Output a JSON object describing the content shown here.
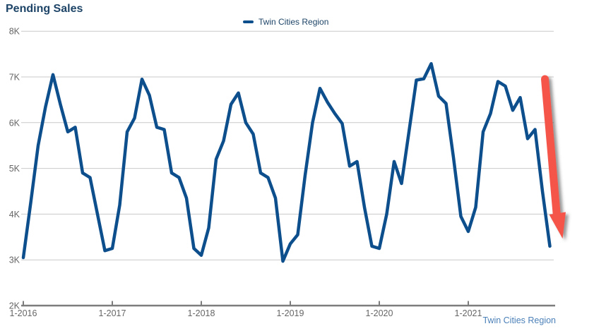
{
  "header": {
    "title": "Pending Sales"
  },
  "legend": {
    "label": "Twin Cities Region"
  },
  "footer": {
    "series_label": "Twin Cities Region"
  },
  "colors": {
    "line": "#0d4e8c",
    "title_text": "#1d4467",
    "legend_text": "#1d4467",
    "axis_text": "#666666",
    "grid_line": "#c9c9c9",
    "axis_line": "#7d7d7d",
    "footer_text": "#4b80b8",
    "arrow": "#f5544a",
    "arrow_shadow": "#444444"
  },
  "chart_data": {
    "type": "line",
    "title": "Pending Sales",
    "series_name": "Twin Cities Region",
    "x": [
      "2016-01",
      "2016-02",
      "2016-03",
      "2016-04",
      "2016-05",
      "2016-06",
      "2016-07",
      "2016-08",
      "2016-09",
      "2016-10",
      "2016-11",
      "2016-12",
      "2017-01",
      "2017-02",
      "2017-03",
      "2017-04",
      "2017-05",
      "2017-06",
      "2017-07",
      "2017-08",
      "2017-09",
      "2017-10",
      "2017-11",
      "2017-12",
      "2018-01",
      "2018-02",
      "2018-03",
      "2018-04",
      "2018-05",
      "2018-06",
      "2018-07",
      "2018-08",
      "2018-09",
      "2018-10",
      "2018-11",
      "2018-12",
      "2019-01",
      "2019-02",
      "2019-03",
      "2019-04",
      "2019-05",
      "2019-06",
      "2019-07",
      "2019-08",
      "2019-09",
      "2019-10",
      "2019-11",
      "2019-12",
      "2020-01",
      "2020-02",
      "2020-03",
      "2020-04",
      "2020-05",
      "2020-06",
      "2020-07",
      "2020-08",
      "2020-09",
      "2020-10",
      "2020-11",
      "2020-12",
      "2021-01",
      "2021-02",
      "2021-03",
      "2021-04",
      "2021-05",
      "2021-06",
      "2021-07",
      "2021-08",
      "2021-09",
      "2021-10",
      "2021-11",
      "2021-12"
    ],
    "values": [
      3050,
      4250,
      5500,
      6350,
      7050,
      6400,
      5800,
      5900,
      4900,
      4800,
      4000,
      3200,
      3250,
      4200,
      5800,
      6100,
      6950,
      6600,
      5900,
      5850,
      4900,
      4800,
      4350,
      3250,
      3100,
      3700,
      5200,
      5600,
      6400,
      6650,
      6000,
      5750,
      4900,
      4800,
      4350,
      2970,
      3350,
      3550,
      4850,
      6000,
      6750,
      6450,
      6200,
      5980,
      5050,
      5150,
      4150,
      3300,
      3250,
      4000,
      5150,
      4670,
      5800,
      6930,
      6960,
      7290,
      6580,
      6420,
      5240,
      3950,
      3620,
      4150,
      5800,
      6200,
      6900,
      6800,
      6270,
      6550,
      5650,
      5850,
      4500,
      3300
    ],
    "ylim": [
      2000,
      8000
    ],
    "y_ticks": [
      {
        "label": "8K",
        "value": 8000
      },
      {
        "label": "7K",
        "value": 7000
      },
      {
        "label": "6K",
        "value": 6000
      },
      {
        "label": "5K",
        "value": 5000
      },
      {
        "label": "4K",
        "value": 4000
      },
      {
        "label": "3K",
        "value": 3000
      },
      {
        "label": "2K",
        "value": 2000
      }
    ],
    "x_ticks": [
      {
        "label": "1-2016",
        "month_index": 0
      },
      {
        "label": "1-2017",
        "month_index": 12
      },
      {
        "label": "1-2018",
        "month_index": 24
      },
      {
        "label": "1-2019",
        "month_index": 36
      },
      {
        "label": "1-2020",
        "month_index": 48
      },
      {
        "label": "1-2021",
        "month_index": 60
      }
    ],
    "grid": "horizontal",
    "legend_position": "top-center",
    "annotation": {
      "type": "arrow-down",
      "color": "#f5544a",
      "note": "steep decline at end of series"
    }
  }
}
